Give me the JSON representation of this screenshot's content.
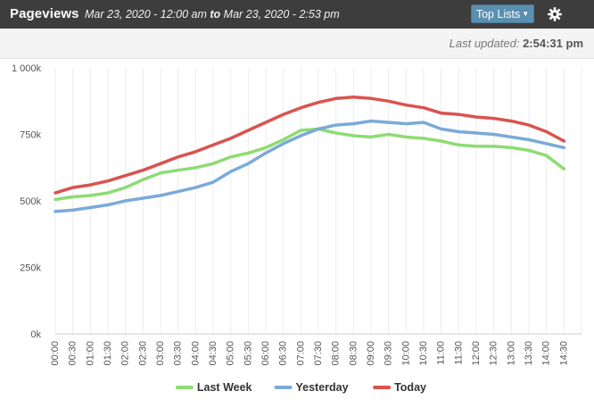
{
  "header": {
    "title": "Pageviews",
    "range_start": "Mar 23, 2020 - 12:00 am",
    "range_to": "to",
    "range_end": "Mar 23, 2020 - 2:53 pm",
    "top_lists_label": "Top Lists",
    "settings_icon": "gear-icon"
  },
  "status": {
    "last_updated_label": "Last updated:",
    "last_updated_time": "2:54:31 pm"
  },
  "colors": {
    "last_week": "#8ddc73",
    "yesterday": "#7aaad9",
    "today": "#d9534f",
    "header_bg": "#3d3d3d",
    "button": "#5b8fb0"
  },
  "chart_data": {
    "type": "line",
    "title": "",
    "xlabel": "",
    "ylabel": "",
    "ylim": [
      0,
      1000000
    ],
    "y_ticks": [
      0,
      250000,
      500000,
      750000,
      1000000
    ],
    "y_tick_labels": [
      "0k",
      "250k",
      "500k",
      "750k",
      "1 000k"
    ],
    "x": [
      "00:00",
      "00:30",
      "01:00",
      "01:30",
      "02:00",
      "02:30",
      "03:00",
      "03:30",
      "04:00",
      "04:30",
      "05:00",
      "05:30",
      "06:00",
      "06:30",
      "07:00",
      "07:30",
      "08:00",
      "08:30",
      "09:00",
      "09:30",
      "10:00",
      "10:30",
      "11:00",
      "11:30",
      "12:00",
      "12:30",
      "13:00",
      "13:30",
      "14:00",
      "14:30"
    ],
    "legend_position": "bottom-center",
    "grid": "vertical",
    "series": [
      {
        "name": "Last Week",
        "color": "#8ddc73",
        "values": [
          505000,
          515000,
          520000,
          530000,
          550000,
          580000,
          605000,
          615000,
          625000,
          640000,
          665000,
          680000,
          700000,
          730000,
          765000,
          770000,
          755000,
          745000,
          740000,
          750000,
          740000,
          735000,
          725000,
          710000,
          705000,
          705000,
          700000,
          690000,
          670000,
          620000
        ]
      },
      {
        "name": "Yesterday",
        "color": "#7aaad9",
        "values": [
          460000,
          465000,
          475000,
          485000,
          500000,
          510000,
          520000,
          535000,
          550000,
          570000,
          610000,
          640000,
          680000,
          715000,
          745000,
          770000,
          785000,
          790000,
          800000,
          795000,
          790000,
          795000,
          770000,
          760000,
          755000,
          750000,
          740000,
          730000,
          715000,
          700000
        ]
      },
      {
        "name": "Today",
        "color": "#d9534f",
        "values": [
          530000,
          550000,
          560000,
          575000,
          595000,
          615000,
          640000,
          665000,
          685000,
          710000,
          735000,
          765000,
          795000,
          825000,
          850000,
          870000,
          885000,
          890000,
          885000,
          875000,
          860000,
          850000,
          830000,
          825000,
          815000,
          810000,
          800000,
          785000,
          760000,
          725000
        ]
      }
    ]
  }
}
